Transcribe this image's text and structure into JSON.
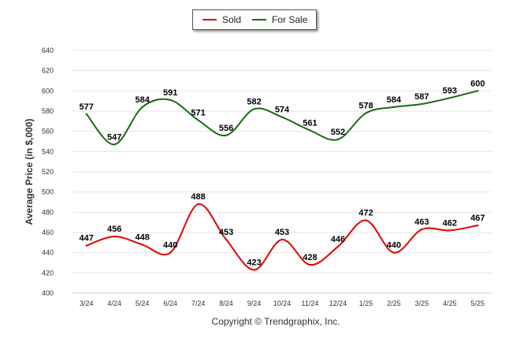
{
  "chart_data": {
    "type": "line",
    "ylabel": "Average Price (in $,000)",
    "xlabel": "",
    "ylim": [
      400,
      640
    ],
    "yticks": [
      400,
      420,
      440,
      460,
      480,
      500,
      520,
      540,
      560,
      580,
      600,
      620,
      640
    ],
    "grid": true,
    "legend_position": "top-center",
    "categories": [
      "3/24",
      "4/24",
      "5/24",
      "6/24",
      "7/24",
      "8/24",
      "9/24",
      "10/24",
      "11/24",
      "12/24",
      "1/25",
      "2/25",
      "3/25",
      "4/25",
      "5/25"
    ],
    "series": [
      {
        "name": "Sold",
        "color": "#e00000",
        "values": [
          447,
          456,
          448,
          440,
          488,
          453,
          423,
          453,
          428,
          446,
          472,
          440,
          463,
          462,
          467
        ]
      },
      {
        "name": "For Sale",
        "color": "#1a6b12",
        "values": [
          577,
          547,
          584,
          591,
          571,
          556,
          582,
          574,
          561,
          552,
          578,
          584,
          587,
          593,
          600
        ]
      }
    ]
  },
  "footer": "Copyright © Trendgraphix, Inc."
}
